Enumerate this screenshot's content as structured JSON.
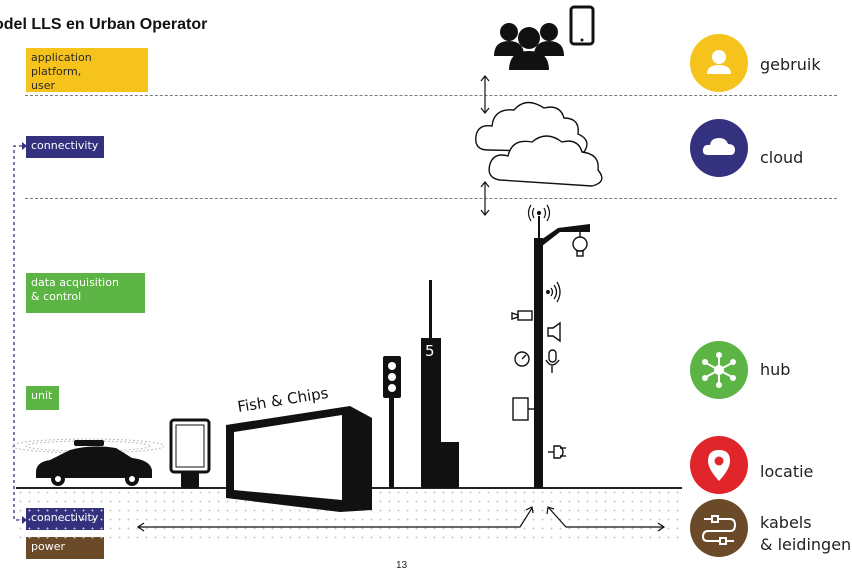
{
  "title": "odel LLS en Urban Operator",
  "layers": {
    "application_platform": "application platform,\nuser",
    "connectivity_top": "connectivity",
    "data_acquisition": "data acquisition\n& control",
    "unit": "unit",
    "connectivity_bottom": "connectivity",
    "power": "power"
  },
  "categories": {
    "gebruik": "gebruik",
    "cloud": "cloud",
    "hub": "hub",
    "locatie": "locatie",
    "kabels": "kabels\n& leidingen"
  },
  "scene": {
    "shop_sign": "Fish & Chips",
    "tower_number": "5"
  },
  "colors": {
    "yellow": "#f6c21c",
    "blue": "#34317f",
    "green": "#5cb444",
    "red": "#e0262b",
    "brown": "#6b4a2a"
  },
  "icons": {
    "gebruik": "user-icon",
    "cloud": "cloud-icon",
    "hub": "network-hub-icon",
    "locatie": "map-pin-icon",
    "kabels": "cable-plug-icon"
  },
  "page_number": "13"
}
